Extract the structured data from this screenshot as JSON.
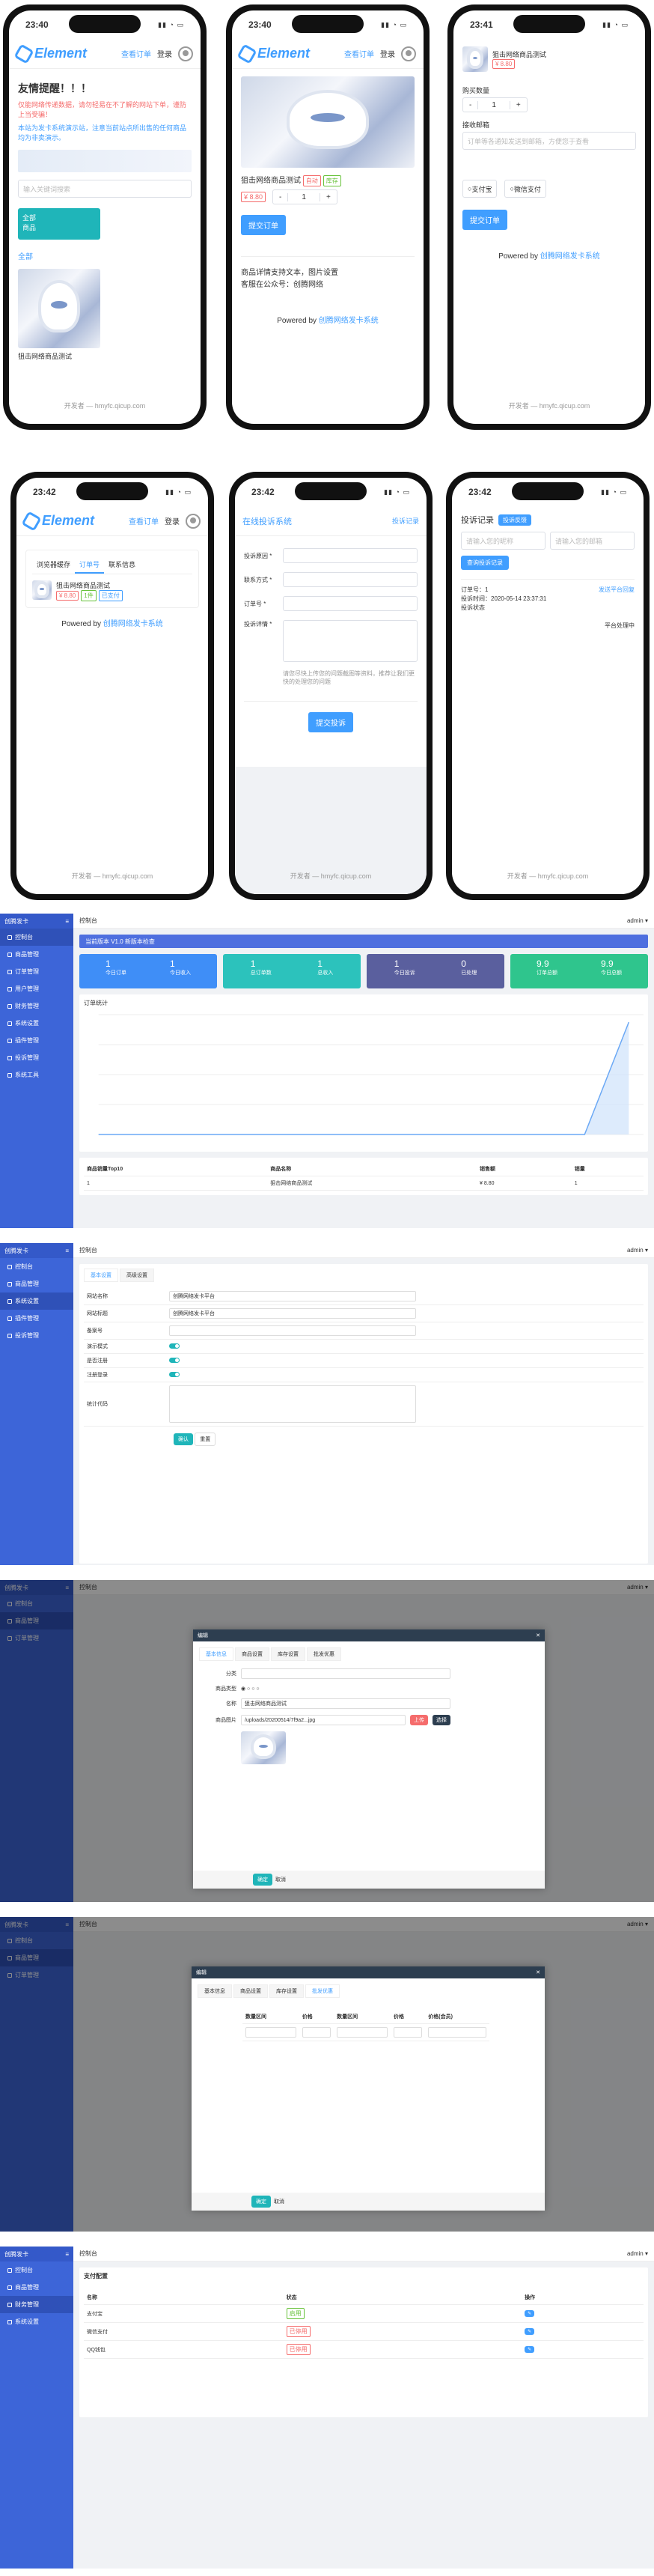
{
  "status": {
    "t1": "23:40",
    "t2": "23:40",
    "t3": "23:41",
    "t4": "23:42",
    "t5": "23:42",
    "t6": "23:42"
  },
  "header": {
    "logo": "Element",
    "nav1": "查看订单",
    "nav2": "登录"
  },
  "p1": {
    "title": "友情提醒！！！",
    "warn": "仅能网络传递数据，请勿轻易在不了解的网站下单，谨防上当受骗！",
    "info": "本站为发卡系统演示站，注意当前站点所出售的任何商品均为非卖演示。",
    "search_ph": "输入关键词搜索",
    "btn": "全部",
    "btn2": "商品",
    "cat": "全部",
    "product": "狙击网络商品测试",
    "footer": "开发者 — hmyfc.qicup.com"
  },
  "p2": {
    "product": "狙击网络商品测试",
    "tag1": "自动",
    "tag2": "库存",
    "price": "¥ 8.80",
    "qty": "1",
    "buy": "提交订单",
    "desc1": "商品详情支持文本，图片设置",
    "desc2": "客服在公众号：创腾网络",
    "powered": "Powered by",
    "powered_link": "创腾网络发卡系统"
  },
  "p3": {
    "price_tag": "¥ 8.80",
    "ql": "购买数量",
    "qty": "1",
    "cl": "接收邮箱",
    "ph": "订单等各通知发送到邮箱，方便您于查看",
    "pay1": "支付宝",
    "pay2": "微信支付",
    "submit": "提交订单",
    "footer": "开发者 — hmyfc.qicup.com"
  },
  "p4": {
    "tab1": "浏览器缓存",
    "tab2": "订单号",
    "tab3": "联系信息",
    "product": "狙击网络商品测试",
    "price": "¥ 8.80",
    "tag": "1件",
    "tag2": "已支付",
    "footer": "开发者 — hmyfc.qicup.com"
  },
  "p5": {
    "title": "在线投诉系统",
    "link": "投诉记录",
    "f1": "投诉原因 *",
    "f2": "联系方式 *",
    "f3": "订单号 *",
    "f4": "投诉详情 *",
    "note": "请您尽快上传您的问题截图等资料，推荐让我们更快的处理您的问题",
    "submit": "提交投诉",
    "footer": "开发者 — hmyfc.qicup.com"
  },
  "p6": {
    "title": "投诉记录",
    "btn": "投诉反馈",
    "ph1": "请输入您的昵称",
    "ph2": "请输入您的邮箱",
    "submit": "查询投诉记录",
    "id": "订单号：1",
    "time": "投诉时间：2020-05-14 23:37:31",
    "status": "投诉状态",
    "reply": "发送平台回复",
    "foot": "平台处理中"
  },
  "a1": {
    "brand": "创腾发卡",
    "crumb": "控制台",
    "notice": "当前版本 V1.0 新版本检查",
    "stats": [
      {
        "l": "今日订单",
        "v": "1"
      },
      {
        "l": "今日收入",
        "v": "1"
      },
      {
        "l": "总订单数",
        "v": "1"
      },
      {
        "l": "总收入",
        "v": "1"
      },
      {
        "l": "今日投诉",
        "v": "1"
      },
      {
        "l": "已处理",
        "v": "0"
      },
      {
        "l": "订单总额",
        "v": "9.9"
      },
      {
        "l": "今日总额",
        "v": "9.9"
      }
    ],
    "chart": "订单统计",
    "rank": "商品销量Top10",
    "cols": [
      "排名",
      "商品名称",
      "销售额",
      "销量"
    ],
    "row": [
      "1",
      "狙击网络商品测试",
      "¥ 8.80",
      "1"
    ]
  },
  "menu": [
    "控制台",
    "商品管理",
    "订单管理",
    "用户管理",
    "财务管理",
    "系统设置",
    "插件管理",
    "投诉管理",
    "系统工具"
  ],
  "a2": {
    "tab1": "基本设置",
    "tab2": "高级设置",
    "rows": [
      [
        "网站名称",
        "创腾网络发卡平台"
      ],
      [
        "网站标题",
        "创腾网络发卡平台"
      ],
      [
        "备案号",
        ""
      ],
      [
        "演示模式",
        ""
      ],
      [
        "是否注册",
        ""
      ],
      [
        "注册登录",
        ""
      ],
      [
        "统计代码",
        ""
      ]
    ],
    "ok": "确认",
    "cancel": "重置"
  },
  "a3": {
    "modal": "编辑",
    "tabs": [
      "基本信息",
      "商品设置",
      "库存设置",
      "批发优惠"
    ],
    "f1": "分类",
    "f2": "商品类型",
    "f3": "名称",
    "f4": "商品图片",
    "path": "/uploads/20200514/7f9a2...jpg",
    "up": "上传",
    "pick": "选择",
    "ok": "确定",
    "cancel": "取消"
  },
  "a4": {
    "modal": "编辑",
    "cols": [
      "数量区间",
      "价格",
      "数量区间",
      "价格",
      "价格(会员)"
    ],
    "ok": "确定",
    "cancel": "取消"
  },
  "a5": {
    "title": "支付配置",
    "rows": [
      [
        "支付宝",
        "启用"
      ],
      [
        "微信支付",
        "已停用"
      ],
      [
        "QQ钱包",
        "已停用"
      ]
    ],
    "cols": [
      "名称",
      "状态",
      "操作"
    ]
  }
}
